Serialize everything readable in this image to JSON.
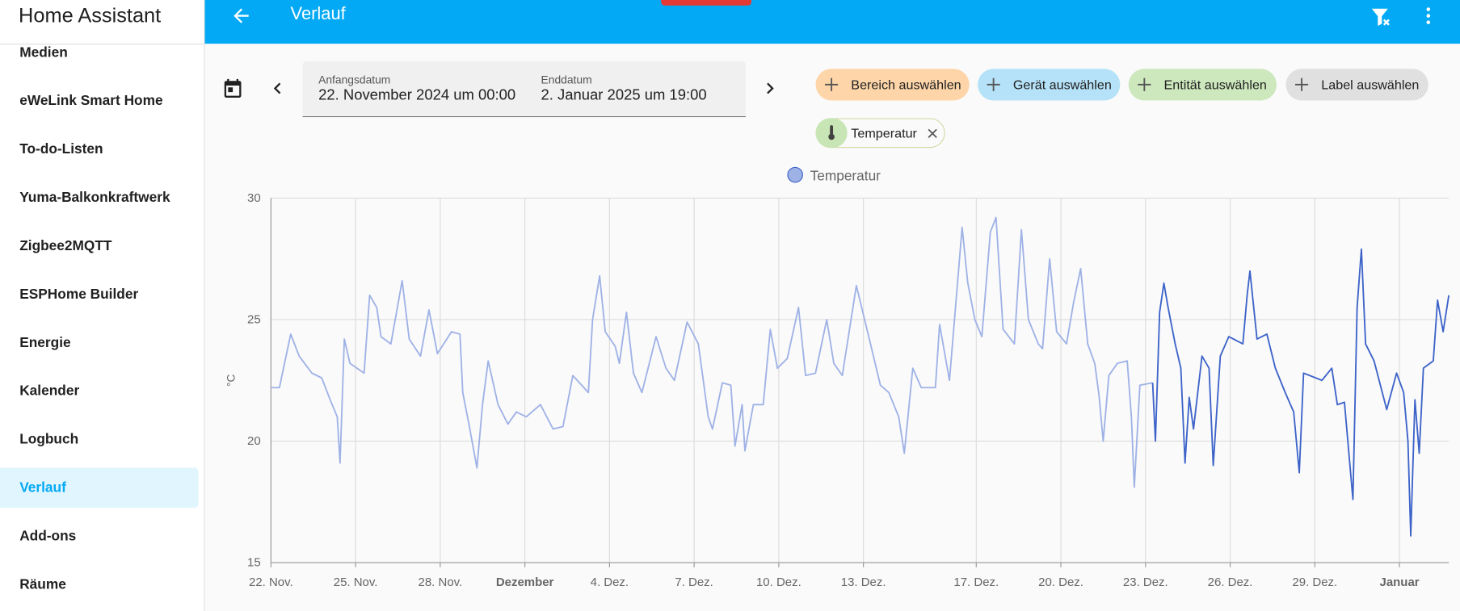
{
  "sidebar": {
    "title": "Home Assistant",
    "items": [
      "Medien",
      "eWeLink Smart Home",
      "To-do-Listen",
      "Yuma-Balkonkraftwerk",
      "Zigbee2MQTT",
      "ESPHome Builder",
      "Energie",
      "Kalender",
      "Logbuch",
      "Verlauf",
      "Add-ons",
      "Räume"
    ],
    "selected": 9
  },
  "header": {
    "title": "Verlauf"
  },
  "date_range": {
    "start_label": "Anfangsdatum",
    "start": "22. November 2024 um 00:00",
    "end_label": "Enddatum",
    "end": "2. Januar 2025 um 19:00"
  },
  "filters": {
    "chips": [
      {
        "label": "Bereich auswählen",
        "color": "#fdd5a8"
      },
      {
        "label": "Gerät auswählen",
        "color": "#b5e2f8"
      },
      {
        "label": "Entität auswählen",
        "color": "#cde8bd"
      },
      {
        "label": "Label auswählen",
        "color": "#e0e0e0"
      }
    ],
    "selected": [
      "Temperatur"
    ]
  },
  "chart_data": {
    "type": "line",
    "ylabel": "°C",
    "xlim": [
      0,
      41.75
    ],
    "ylim": [
      15,
      30
    ],
    "yticks": [
      15,
      20,
      25,
      30
    ],
    "xticks": [
      {
        "value": 0,
        "label": "22. Nov."
      },
      {
        "value": 3,
        "label": "25. Nov."
      },
      {
        "value": 6,
        "label": "28. Nov."
      },
      {
        "value": 9,
        "label": "Dezember",
        "bold": true
      },
      {
        "value": 12,
        "label": "4. Dez."
      },
      {
        "value": 15,
        "label": "7. Dez."
      },
      {
        "value": 18,
        "label": "10. Dez."
      },
      {
        "value": 21,
        "label": "13. Dez."
      },
      {
        "value": 25,
        "label": "17. Dez."
      },
      {
        "value": 28,
        "label": "20. Dez."
      },
      {
        "value": 31,
        "label": "23. Dez."
      },
      {
        "value": 34,
        "label": "26. Dez."
      },
      {
        "value": 37,
        "label": "29. Dez."
      },
      {
        "value": 40,
        "label": "Januar",
        "bold": true
      }
    ],
    "grid": true,
    "series": [
      {
        "name": "Temperatur",
        "color": "#9fb2e6",
        "x": [
          0,
          0.3,
          0.7,
          1.0,
          1.45,
          1.8,
          2.1,
          2.35,
          2.45,
          2.6,
          2.8,
          3.3,
          3.5,
          3.75,
          3.9,
          4.25,
          4.65,
          4.9,
          5.3,
          5.6,
          5.9,
          6.4,
          6.7,
          6.8,
          7.05,
          7.3,
          7.5,
          7.7,
          8.05,
          8.4,
          8.7,
          9.05,
          9.55,
          10.0,
          10.35,
          10.7,
          11.25,
          11.4,
          11.65,
          11.85,
          12.2,
          12.35,
          12.6,
          12.85,
          13.15,
          13.65,
          14.0,
          14.3,
          14.75,
          15.15,
          15.5,
          15.65,
          16.0,
          16.3,
          16.45,
          16.7,
          16.8,
          17.1,
          17.45,
          17.7,
          17.95,
          18.3,
          18.7,
          18.95,
          19.3,
          19.7,
          19.95,
          20.25,
          20.75,
          21.25,
          21.6,
          21.9,
          22.25,
          22.45,
          22.75,
          23.05,
          23.55,
          23.7,
          24.05,
          24.5,
          24.7,
          24.95,
          25.2,
          25.5,
          25.7,
          25.95,
          26.35,
          26.6,
          26.85,
          27.2,
          27.35,
          27.6,
          27.85,
          28.2,
          28.45,
          28.7,
          28.95,
          29.2,
          29.35,
          29.5,
          29.7,
          30.0,
          30.35,
          30.5,
          30.6,
          30.8,
          31.25
        ],
        "values": [
          22.2,
          22.2,
          24.4,
          23.5,
          22.8,
          22.6,
          21.7,
          21.0,
          19.1,
          24.2,
          23.2,
          22.8,
          26.0,
          25.5,
          24.3,
          24.0,
          26.6,
          24.2,
          23.5,
          25.4,
          23.6,
          24.5,
          24.4,
          22.0,
          20.5,
          18.9,
          21.5,
          23.3,
          21.5,
          20.7,
          21.2,
          21.0,
          21.5,
          20.5,
          20.6,
          22.7,
          22.0,
          25.0,
          26.8,
          24.5,
          23.9,
          23.2,
          25.3,
          22.8,
          22.0,
          24.3,
          23.0,
          22.5,
          24.9,
          24.0,
          21.0,
          20.5,
          22.4,
          22.3,
          19.8,
          21.5,
          19.6,
          21.5,
          21.5,
          24.6,
          23.0,
          23.4,
          25.5,
          22.7,
          22.8,
          25.0,
          23.2,
          22.7,
          26.4,
          24.0,
          22.3,
          22.0,
          21.0,
          19.5,
          23.0,
          22.2,
          22.2,
          24.8,
          22.5,
          28.8,
          26.5,
          25.0,
          24.3,
          28.6,
          29.2,
          24.6,
          24.0,
          28.7,
          25.0,
          24.0,
          23.8,
          27.5,
          24.5,
          24.0,
          25.7,
          27.1,
          24.0,
          23.2,
          21.9,
          20.0,
          22.7,
          23.2,
          23.3,
          21.0,
          18.1,
          22.3,
          22.4
        ]
      },
      {
        "color": "#3d63c9",
        "x": [
          31.25,
          31.35,
          31.5,
          31.65,
          31.8,
          32.05,
          32.25,
          32.4,
          32.55,
          32.7,
          33.0,
          33.25,
          33.4,
          33.65,
          33.95,
          34.45,
          34.6,
          34.7,
          34.95,
          35.3,
          35.6,
          35.95,
          36.25,
          36.45,
          36.6,
          37.25,
          37.6,
          37.8,
          38.05,
          38.35,
          38.5,
          38.65,
          38.8,
          39.1,
          39.55,
          39.9,
          40.15,
          40.3,
          40.4,
          40.55,
          40.7,
          40.85,
          41.2,
          41.35,
          41.55,
          41.75
        ],
        "values": [
          22.4,
          20.0,
          25.3,
          26.5,
          25.5,
          24.0,
          23.0,
          19.1,
          21.8,
          20.5,
          23.5,
          23.0,
          19.0,
          23.5,
          24.3,
          24.0,
          26.0,
          27.0,
          24.2,
          24.4,
          23.0,
          22.0,
          21.2,
          18.7,
          22.8,
          22.5,
          23.0,
          21.5,
          21.6,
          17.6,
          25.5,
          27.9,
          24.0,
          23.3,
          21.3,
          22.8,
          22.0,
          20.0,
          16.1,
          21.7,
          19.5,
          23.0,
          23.3,
          25.8,
          24.5,
          26.0
        ]
      }
    ]
  }
}
